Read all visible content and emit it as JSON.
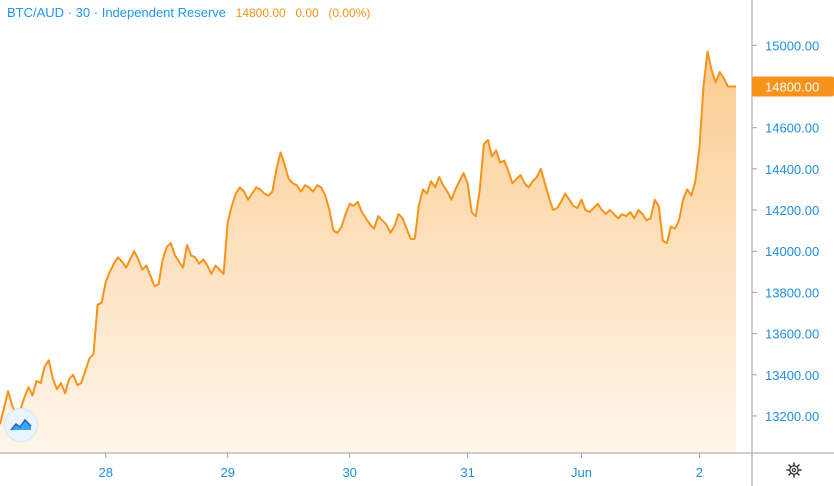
{
  "header": {
    "symbol": "BTC/AUD",
    "sep1": "·",
    "interval": "30",
    "sep2": "·",
    "exchange": "Independent Reserve",
    "last": "14800.00",
    "change": "0.00",
    "change_pct": "(0.00%)"
  },
  "last_price_label": "14800.00",
  "icons": {
    "logo": "tradingview-logo-icon",
    "settings": "gear-icon"
  },
  "colors": {
    "line": "#f7931a",
    "axis_text": "#1f8fe0",
    "fill_top": "#fbc98a",
    "fill_bottom": "#fff4e8"
  },
  "chart_data": {
    "type": "area",
    "x_label_ticks": [
      "28",
      "29",
      "30",
      "31",
      "Jun",
      "2"
    ],
    "y_ticks": [
      "13200.00",
      "13400.00",
      "13600.00",
      "13800.00",
      "14000.00",
      "14200.00",
      "14400.00",
      "14600.00",
      "14800.00",
      "15000.00"
    ],
    "ylim": [
      13020,
      15220
    ],
    "xlim": [
      0,
      181
    ],
    "x_tick_positions": [
      26,
      56,
      86,
      115,
      143,
      172
    ],
    "grid": false,
    "values": [
      13160,
      13240,
      13320,
      13250,
      13210,
      13230,
      13290,
      13340,
      13300,
      13370,
      13360,
      13440,
      13470,
      13380,
      13330,
      13360,
      13310,
      13380,
      13400,
      13350,
      13360,
      13420,
      13480,
      13500,
      13740,
      13750,
      13850,
      13900,
      13940,
      13970,
      13950,
      13920,
      13960,
      14000,
      13960,
      13910,
      13930,
      13880,
      13830,
      13840,
      13960,
      14020,
      14040,
      13980,
      13950,
      13920,
      14030,
      13980,
      13970,
      13940,
      13960,
      13930,
      13890,
      13930,
      13910,
      13890,
      14140,
      14220,
      14280,
      14310,
      14290,
      14250,
      14280,
      14310,
      14300,
      14280,
      14270,
      14290,
      14400,
      14480,
      14420,
      14350,
      14330,
      14320,
      14290,
      14320,
      14310,
      14290,
      14320,
      14310,
      14270,
      14200,
      14100,
      14090,
      14120,
      14180,
      14230,
      14220,
      14240,
      14190,
      14160,
      14130,
      14110,
      14170,
      14150,
      14130,
      14090,
      14120,
      14180,
      14160,
      14110,
      14060,
      14060,
      14220,
      14300,
      14280,
      14340,
      14310,
      14360,
      14320,
      14290,
      14250,
      14300,
      14340,
      14380,
      14330,
      14190,
      14170,
      14300,
      14520,
      14540,
      14460,
      14490,
      14430,
      14440,
      14390,
      14330,
      14350,
      14370,
      14330,
      14310,
      14340,
      14360,
      14400,
      14330,
      14260,
      14200,
      14210,
      14240,
      14280,
      14250,
      14220,
      14210,
      14250,
      14200,
      14190,
      14210,
      14230,
      14200,
      14180,
      14200,
      14180,
      14160,
      14180,
      14170,
      14190,
      14160,
      14200,
      14180,
      14150,
      14160,
      14250,
      14220,
      14050,
      14040,
      14120,
      14110,
      14150,
      14250,
      14300,
      14270,
      14340,
      14500,
      14800,
      14970,
      14880,
      14820,
      14870,
      14840,
      14800,
      14800,
      14800
    ]
  }
}
